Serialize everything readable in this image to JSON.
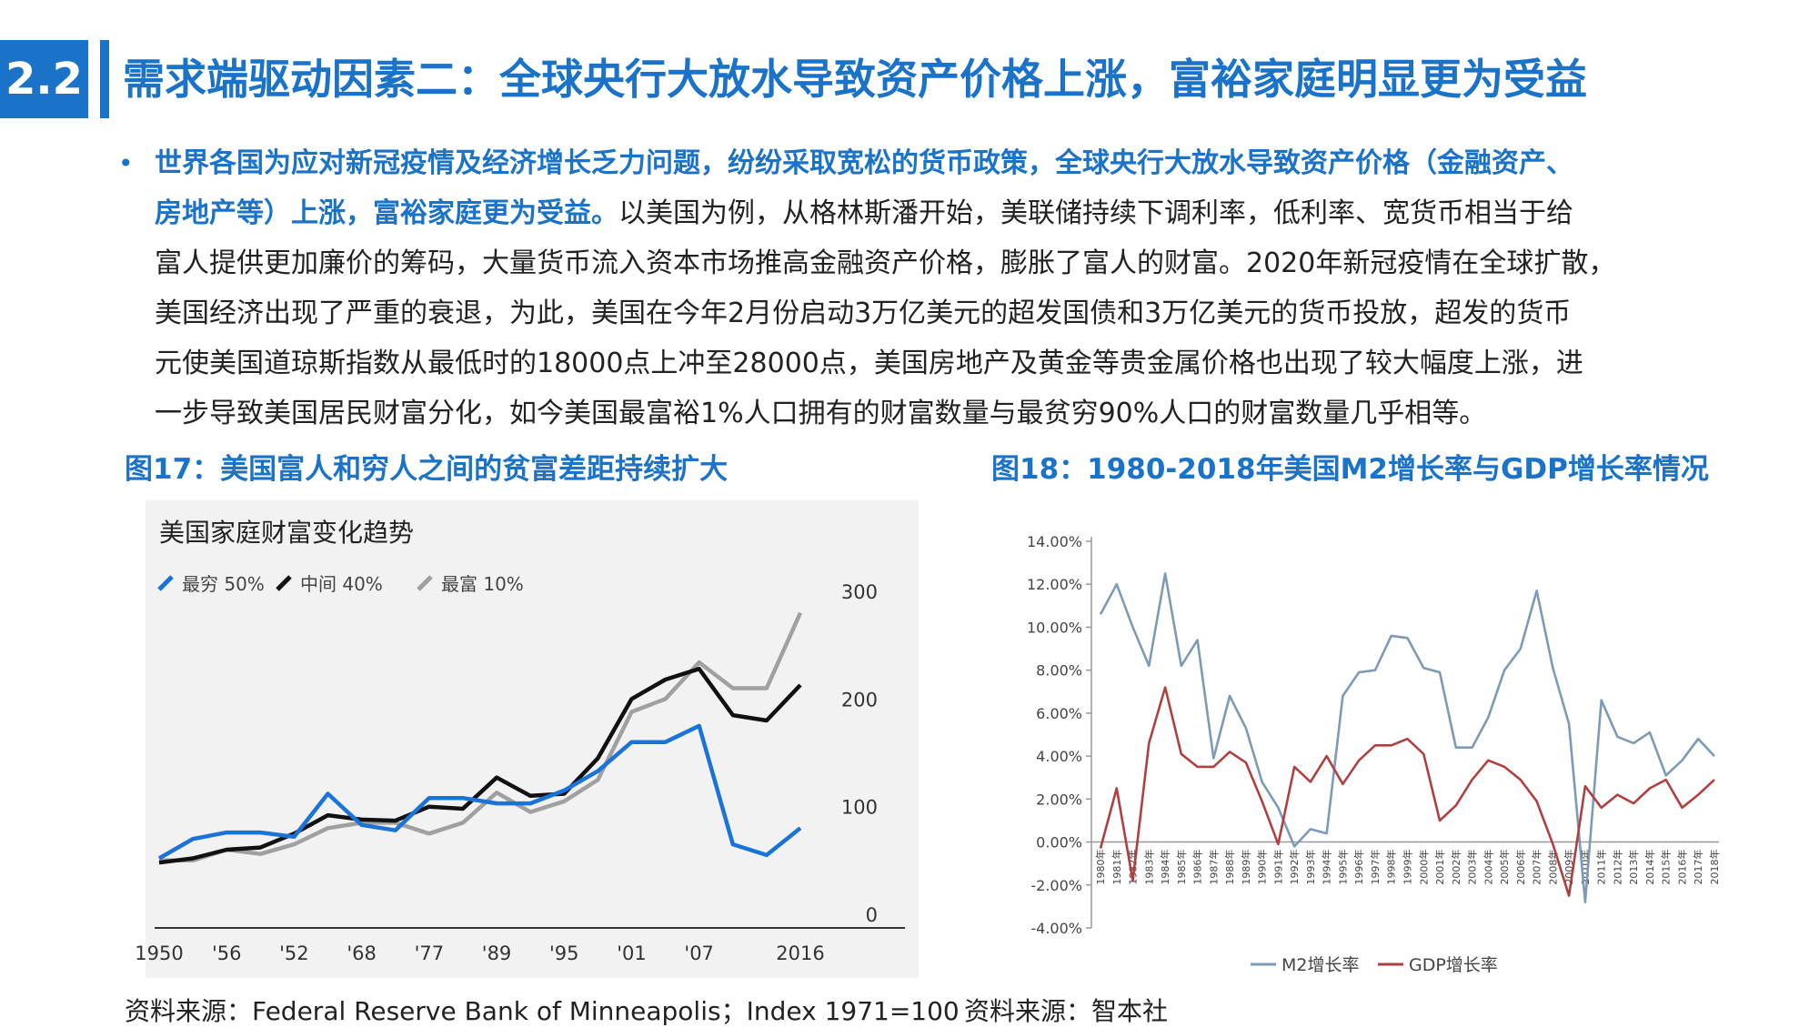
{
  "header": {
    "section_number": "2.2",
    "title": "需求端驱动因素二：全球央行大放水导致资产价格上涨，富裕家庭明显更为受益"
  },
  "paragraph": {
    "bullet": "•",
    "highlight_line1": "世界各国为应对新冠疫情及经济增长乏力问题，纷纷采取宽松的货币政策，全球央行大放水导致资产价格（金融资产、",
    "highlight_line2": "房地产等）上涨，富裕家庭更为受益。",
    "line2_rest": "以美国为例，从格林斯潘开始，美联储持续下调利率，低利率、宽货币相当于给",
    "line3": "富人提供更加廉价的筹码，大量货币流入资本市场推高金融资产价格，膨胀了富人的财富。2020年新冠疫情在全球扩散，",
    "line4": "美国经济出现了严重的衰退，为此，美国在今年2月份启动3万亿美元的超发国债和3万亿美元的货币投放，超发的货币",
    "line5": "元使美国道琼斯指数从最低时的18000点上冲至28000点，美国房地产及黄金等贵金属价格也出现了较大幅度上涨，进",
    "line6": "一步导致美国居民财富分化，如今美国最富裕1%人口拥有的财富数量与最贫穷90%人口的财富数量几乎相等。"
  },
  "figures": {
    "fig17_title": "图17：美国富人和穷人之间的贫富差距持续扩大",
    "fig18_title": "图18：1980-2018年美国M2增长率与GDP增长率情况",
    "fig17_source": "资料来源：Federal Reserve Bank of Minneapolis；Index 1971=100",
    "fig18_source": "资料来源：智本社"
  },
  "chart_data": [
    {
      "type": "line",
      "title": "美国家庭财富变化趋势",
      "xlabel": "",
      "ylabel": "",
      "x_ticks": [
        "1950",
        "'56",
        "'52",
        "'68",
        "'77",
        "'89",
        "'95",
        "'01",
        "'07",
        "2016"
      ],
      "x_tick_positions": [
        0,
        2,
        4,
        6,
        8,
        10,
        12,
        14,
        16,
        19
      ],
      "y_ticks": [
        "0",
        "100",
        "200",
        "300"
      ],
      "ylim": [
        0,
        300
      ],
      "legend_position": "top-left",
      "grid": false,
      "series": [
        {
          "name": "最穷 50%",
          "color": "#1a73d9",
          "values": [
            52,
            70,
            76,
            76,
            72,
            112,
            83,
            78,
            108,
            108,
            103,
            103,
            115,
            133,
            160,
            160,
            175,
            65,
            55,
            80
          ]
        },
        {
          "name": "中间 40%",
          "color": "#111111",
          "values": [
            48,
            52,
            60,
            62,
            75,
            92,
            88,
            87,
            100,
            98,
            127,
            110,
            112,
            145,
            200,
            218,
            228,
            185,
            180,
            213
          ]
        },
        {
          "name": "最富 10%",
          "color": "#a0a0a0",
          "values": [
            50,
            50,
            60,
            56,
            65,
            80,
            85,
            85,
            75,
            85,
            113,
            95,
            105,
            125,
            188,
            200,
            234,
            210,
            210,
            280
          ]
        }
      ]
    },
    {
      "type": "line",
      "title": "",
      "xlabel": "",
      "ylabel": "",
      "x": [
        "1980年",
        "1981年",
        "1982年",
        "1983年",
        "1984年",
        "1985年",
        "1986年",
        "1987年",
        "1988年",
        "1989年",
        "1990年",
        "1991年",
        "1992年",
        "1993年",
        "1994年",
        "1995年",
        "1996年",
        "1997年",
        "1998年",
        "1999年",
        "2000年",
        "2001年",
        "2002年",
        "2003年",
        "2004年",
        "2005年",
        "2006年",
        "2007年",
        "2008年",
        "2009年",
        "2010年",
        "2011年",
        "2012年",
        "2013年",
        "2014年",
        "2015年",
        "2016年",
        "2017年",
        "2018年"
      ],
      "ylim": [
        -4,
        14
      ],
      "y_ticks": [
        "-4.00%",
        "-2.00%",
        "0.00%",
        "2.00%",
        "4.00%",
        "6.00%",
        "8.00%",
        "10.00%",
        "12.00%",
        "14.00%"
      ],
      "legend_position": "bottom",
      "grid": false,
      "series": [
        {
          "name": "M2增长率",
          "color": "#7b9bb8",
          "values": [
            10.6,
            12.0,
            10.0,
            8.2,
            12.5,
            8.2,
            9.4,
            3.9,
            6.8,
            5.3,
            2.8,
            1.6,
            -0.2,
            0.6,
            0.4,
            6.8,
            7.9,
            8.0,
            9.6,
            9.5,
            8.1,
            7.9,
            4.4,
            4.4,
            5.8,
            8.0,
            9.0,
            11.7,
            8.1,
            5.5,
            -2.8,
            6.6,
            4.9,
            4.6,
            5.1,
            3.1,
            3.8,
            4.8,
            4.0
          ]
        },
        {
          "name": "GDP增长率",
          "color": "#b04040",
          "values": [
            -0.3,
            2.5,
            -1.8,
            4.6,
            7.2,
            4.1,
            3.5,
            3.5,
            4.2,
            3.7,
            1.9,
            -0.1,
            3.5,
            2.8,
            4.0,
            2.7,
            3.8,
            4.5,
            4.5,
            4.8,
            4.1,
            1.0,
            1.7,
            2.9,
            3.8,
            3.5,
            2.9,
            1.9,
            -0.1,
            -2.5,
            2.6,
            1.6,
            2.2,
            1.8,
            2.5,
            2.9,
            1.6,
            2.2,
            2.9
          ]
        }
      ]
    }
  ]
}
